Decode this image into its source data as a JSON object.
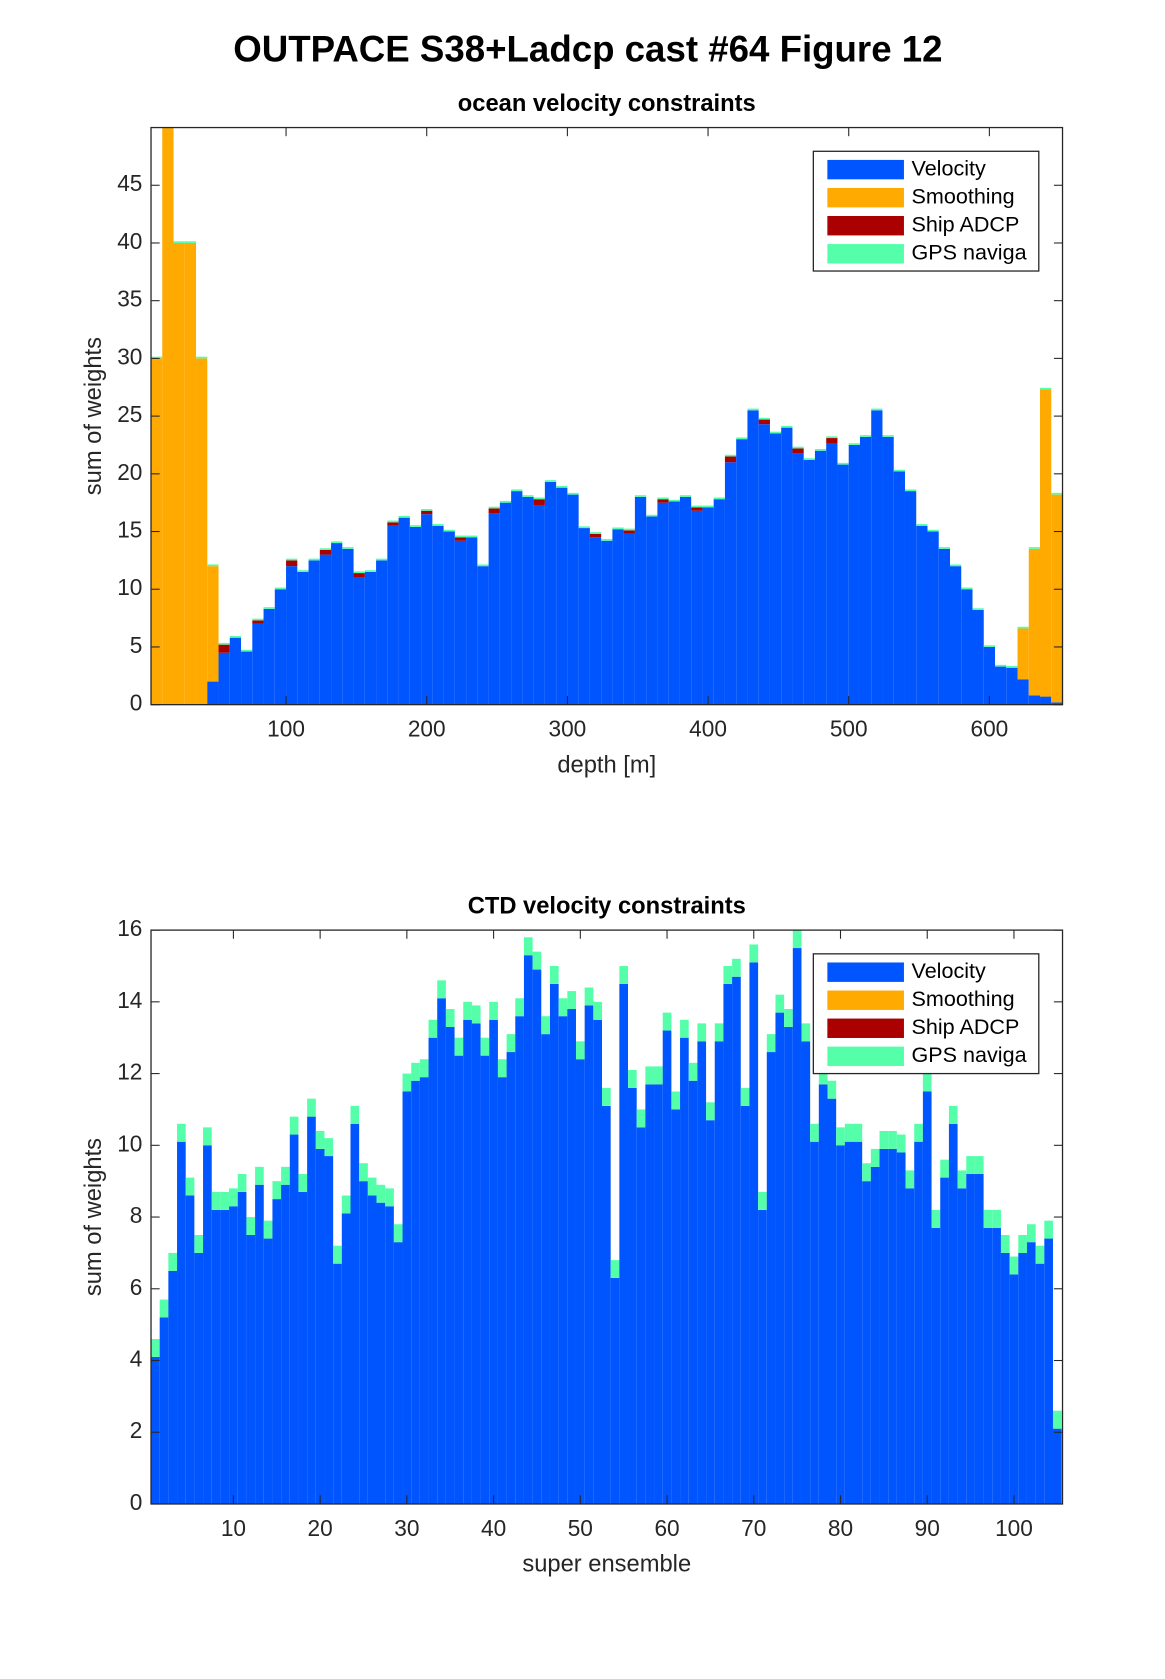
{
  "title": "OUTPACE S38+Ladcp cast #64  Figure 12",
  "chart_data": [
    {
      "type": "bar",
      "stacked": true,
      "title": "ocean velocity constraints",
      "xlabel": "depth [m]",
      "ylabel": "sum of weights",
      "legend": "upper right",
      "x": [
        8,
        16,
        24,
        32,
        40,
        48,
        56,
        64,
        72,
        80,
        88,
        96,
        104,
        112,
        120,
        128,
        136,
        144,
        152,
        160,
        168,
        176,
        184,
        192,
        200,
        208,
        216,
        224,
        232,
        240,
        248,
        256,
        264,
        272,
        280,
        288,
        296,
        304,
        312,
        320,
        328,
        336,
        344,
        352,
        360,
        368,
        376,
        384,
        392,
        400,
        408,
        416,
        424,
        432,
        440,
        448,
        456,
        464,
        472,
        480,
        488,
        496,
        504,
        512,
        520,
        528,
        536,
        544,
        552,
        560,
        568,
        576,
        584,
        592,
        600,
        608,
        616,
        624,
        632,
        640,
        648
      ],
      "series": [
        {
          "name": "Velocity",
          "color": "#0055ff",
          "values": [
            0,
            0,
            0,
            0,
            0,
            2,
            4.5,
            5.8,
            4.6,
            7.0,
            8.3,
            10,
            12,
            11.5,
            12.5,
            13,
            14,
            13.5,
            11,
            11.5,
            12.5,
            15.5,
            16.2,
            15.4,
            16.5,
            15.5,
            15,
            14.2,
            14.5,
            12,
            16.6,
            17.5,
            18.5,
            18,
            17.3,
            19.3,
            18.8,
            18.2,
            15.3,
            14.5,
            14.2,
            15.2,
            14.8,
            18,
            16.3,
            17.5,
            17.6,
            18,
            16.8,
            17.1,
            17.8,
            21,
            23,
            25.5,
            24.3,
            23.5,
            24,
            21.8,
            21.2,
            22,
            22.6,
            20.8,
            22.5,
            23.2,
            25.5,
            23.2,
            20.2,
            18.5,
            15.5,
            15,
            13.5,
            12,
            10,
            8.2,
            5,
            3.3,
            3.2,
            2.2,
            0.8,
            0.7,
            0.2
          ]
        },
        {
          "name": "Smoothing",
          "color": "#ffaa00",
          "values": [
            30,
            50,
            40,
            40,
            30,
            10,
            0,
            0,
            0,
            0,
            0,
            0,
            0,
            0,
            0,
            0,
            0,
            0,
            0,
            0,
            0,
            0,
            0,
            0,
            0,
            0,
            0,
            0,
            0,
            0,
            0,
            0,
            0,
            0,
            0,
            0,
            0,
            0,
            0,
            0,
            0,
            0,
            0,
            0,
            0,
            0,
            0,
            0,
            0,
            0,
            0,
            0,
            0,
            0,
            0,
            0,
            0,
            0,
            0,
            0,
            0,
            0,
            0,
            0,
            0,
            0,
            0,
            0,
            0,
            0,
            0,
            0,
            0,
            0,
            0,
            0,
            0,
            4.4,
            12.7,
            26.6,
            18
          ]
        },
        {
          "name": "Ship ADCP",
          "color": "#aa0000",
          "values": [
            0,
            0,
            0,
            0,
            0,
            0,
            0.7,
            0,
            0,
            0.3,
            0,
            0,
            0.5,
            0,
            0,
            0.4,
            0,
            0,
            0.4,
            0,
            0,
            0.3,
            0,
            0,
            0.3,
            0,
            0,
            0.3,
            0,
            0,
            0.4,
            0,
            0,
            0,
            0.5,
            0,
            0,
            0,
            0,
            0.3,
            0,
            0,
            0.3,
            0,
            0,
            0.3,
            0,
            0,
            0.3,
            0,
            0,
            0.5,
            0,
            0,
            0.4,
            0,
            0,
            0.4,
            0,
            0,
            0.5,
            0,
            0,
            0,
            0,
            0,
            0,
            0,
            0,
            0,
            0,
            0,
            0,
            0,
            0,
            0,
            0,
            0,
            0,
            0,
            0
          ]
        },
        {
          "name": "GPS naviga",
          "color": "#55ffaa",
          "values": [
            0.15,
            0.15,
            0.15,
            0.15,
            0.15,
            0.15,
            0.15,
            0.15,
            0.15,
            0.15,
            0.15,
            0.15,
            0.15,
            0.15,
            0.15,
            0.15,
            0.15,
            0.15,
            0.15,
            0.15,
            0.15,
            0.15,
            0.15,
            0.15,
            0.15,
            0.15,
            0.15,
            0.15,
            0.15,
            0.15,
            0.15,
            0.15,
            0.15,
            0.15,
            0.15,
            0.15,
            0.15,
            0.15,
            0.15,
            0.15,
            0.15,
            0.15,
            0.15,
            0.15,
            0.15,
            0.15,
            0.15,
            0.15,
            0.15,
            0.15,
            0.15,
            0.15,
            0.15,
            0.15,
            0.15,
            0.15,
            0.15,
            0.15,
            0.15,
            0.15,
            0.15,
            0.15,
            0.15,
            0.15,
            0.15,
            0.15,
            0.15,
            0.15,
            0.15,
            0.15,
            0.15,
            0.15,
            0.15,
            0.15,
            0.15,
            0.15,
            0.15,
            0.15,
            0.15,
            0.15,
            0.15
          ]
        }
      ],
      "xlim": [
        4,
        652
      ],
      "ylim": [
        0,
        50
      ],
      "xticks": [
        100,
        200,
        300,
        400,
        500,
        600
      ],
      "yticks": [
        0,
        5,
        10,
        15,
        20,
        25,
        30,
        35,
        40,
        45
      ]
    },
    {
      "type": "bar",
      "stacked": true,
      "title": "CTD velocity constraints",
      "xlabel": "super ensemble",
      "ylabel": "sum of weights",
      "legend": "upper right",
      "x": [
        1,
        2,
        3,
        4,
        5,
        6,
        7,
        8,
        9,
        10,
        11,
        12,
        13,
        14,
        15,
        16,
        17,
        18,
        19,
        20,
        21,
        22,
        23,
        24,
        25,
        26,
        27,
        28,
        29,
        30,
        31,
        32,
        33,
        34,
        35,
        36,
        37,
        38,
        39,
        40,
        41,
        42,
        43,
        44,
        45,
        46,
        47,
        48,
        49,
        50,
        51,
        52,
        53,
        54,
        55,
        56,
        57,
        58,
        59,
        60,
        61,
        62,
        63,
        64,
        65,
        66,
        67,
        68,
        69,
        70,
        71,
        72,
        73,
        74,
        75,
        76,
        77,
        78,
        79,
        80,
        81,
        82,
        83,
        84,
        85,
        86,
        87,
        88,
        89,
        90,
        91,
        92,
        93,
        94,
        95,
        96,
        97,
        98,
        99,
        100,
        101,
        102,
        103,
        104,
        105
      ],
      "series": [
        {
          "name": "Velocity",
          "color": "#0055ff",
          "values": [
            4.1,
            5.2,
            6.5,
            10.1,
            8.6,
            7.0,
            10.0,
            8.2,
            8.2,
            8.3,
            8.7,
            7.5,
            8.9,
            7.4,
            8.5,
            8.9,
            10.3,
            8.7,
            10.8,
            9.9,
            9.7,
            6.7,
            8.1,
            10.6,
            9.0,
            8.6,
            8.4,
            8.3,
            7.3,
            11.5,
            11.8,
            11.9,
            13.0,
            14.1,
            13.3,
            12.5,
            13.5,
            13.4,
            12.5,
            13.5,
            11.9,
            12.6,
            13.6,
            15.3,
            14.9,
            13.1,
            14.5,
            13.6,
            13.8,
            12.4,
            13.9,
            13.5,
            11.1,
            6.3,
            14.5,
            11.6,
            10.5,
            11.7,
            11.7,
            13.2,
            11.0,
            13.0,
            11.8,
            12.9,
            10.7,
            12.9,
            14.5,
            14.7,
            11.1,
            15.1,
            8.2,
            12.6,
            13.7,
            13.3,
            15.5,
            12.9,
            10.1,
            11.7,
            11.3,
            10.0,
            10.1,
            10.1,
            9.0,
            9.4,
            9.9,
            9.9,
            9.8,
            8.8,
            10.1,
            11.5,
            7.7,
            9.1,
            10.6,
            8.8,
            9.2,
            9.2,
            7.7,
            7.7,
            7.0,
            6.4,
            7.0,
            7.3,
            6.7,
            7.4,
            2.1
          ]
        },
        {
          "name": "Smoothing",
          "color": "#ffaa00",
          "values": [
            0,
            0,
            0,
            0,
            0,
            0,
            0,
            0,
            0,
            0,
            0,
            0,
            0,
            0,
            0,
            0,
            0,
            0,
            0,
            0,
            0,
            0,
            0,
            0,
            0,
            0,
            0,
            0,
            0,
            0,
            0,
            0,
            0,
            0,
            0,
            0,
            0,
            0,
            0,
            0,
            0,
            0,
            0,
            0,
            0,
            0,
            0,
            0,
            0,
            0,
            0,
            0,
            0,
            0,
            0,
            0,
            0,
            0,
            0,
            0,
            0,
            0,
            0,
            0,
            0,
            0,
            0,
            0,
            0,
            0,
            0,
            0,
            0,
            0,
            0,
            0,
            0,
            0,
            0,
            0,
            0,
            0,
            0,
            0,
            0,
            0,
            0,
            0,
            0,
            0,
            0,
            0,
            0,
            0,
            0,
            0,
            0,
            0,
            0,
            0,
            0,
            0,
            0,
            0,
            0
          ]
        },
        {
          "name": "Ship ADCP",
          "color": "#aa0000",
          "values": [
            0,
            0,
            0,
            0,
            0,
            0,
            0,
            0,
            0,
            0,
            0,
            0,
            0,
            0,
            0,
            0,
            0,
            0,
            0,
            0,
            0,
            0,
            0,
            0,
            0,
            0,
            0,
            0,
            0,
            0,
            0,
            0,
            0,
            0,
            0,
            0,
            0,
            0,
            0,
            0,
            0,
            0,
            0,
            0,
            0,
            0,
            0,
            0,
            0,
            0,
            0,
            0,
            0,
            0,
            0,
            0,
            0,
            0,
            0,
            0,
            0,
            0,
            0,
            0,
            0,
            0,
            0,
            0,
            0,
            0,
            0,
            0,
            0,
            0,
            0,
            0,
            0,
            0,
            0,
            0,
            0,
            0,
            0,
            0,
            0,
            0,
            0,
            0,
            0,
            0,
            0,
            0,
            0,
            0,
            0,
            0,
            0,
            0,
            0,
            0,
            0,
            0,
            0,
            0,
            0
          ]
        },
        {
          "name": "GPS naviga",
          "color": "#55ffaa",
          "values": [
            0.5,
            0.5,
            0.5,
            0.5,
            0.5,
            0.5,
            0.5,
            0.5,
            0.5,
            0.5,
            0.5,
            0.5,
            0.5,
            0.5,
            0.5,
            0.5,
            0.5,
            0.5,
            0.5,
            0.5,
            0.5,
            0.5,
            0.5,
            0.5,
            0.5,
            0.5,
            0.5,
            0.5,
            0.5,
            0.5,
            0.5,
            0.5,
            0.5,
            0.5,
            0.5,
            0.5,
            0.5,
            0.5,
            0.5,
            0.5,
            0.5,
            0.5,
            0.5,
            0.5,
            0.5,
            0.5,
            0.5,
            0.5,
            0.5,
            0.5,
            0.5,
            0.5,
            0.5,
            0.5,
            0.5,
            0.5,
            0.5,
            0.5,
            0.5,
            0.5,
            0.5,
            0.5,
            0.5,
            0.5,
            0.5,
            0.5,
            0.5,
            0.5,
            0.5,
            0.5,
            0.5,
            0.5,
            0.5,
            0.5,
            0.5,
            0.5,
            0.5,
            0.5,
            0.5,
            0.5,
            0.5,
            0.5,
            0.5,
            0.5,
            0.5,
            0.5,
            0.5,
            0.5,
            0.5,
            0.5,
            0.5,
            0.5,
            0.5,
            0.5,
            0.5,
            0.5,
            0.5,
            0.5,
            0.5,
            0.5,
            0.5,
            0.5,
            0.5,
            0.5,
            0.5
          ]
        }
      ],
      "xlim": [
        0.5,
        105.6
      ],
      "ylim": [
        0,
        16
      ],
      "xticks": [
        10,
        20,
        30,
        40,
        50,
        60,
        70,
        80,
        90,
        100
      ],
      "yticks": [
        0,
        2,
        4,
        6,
        8,
        10,
        12,
        14,
        16
      ]
    }
  ]
}
